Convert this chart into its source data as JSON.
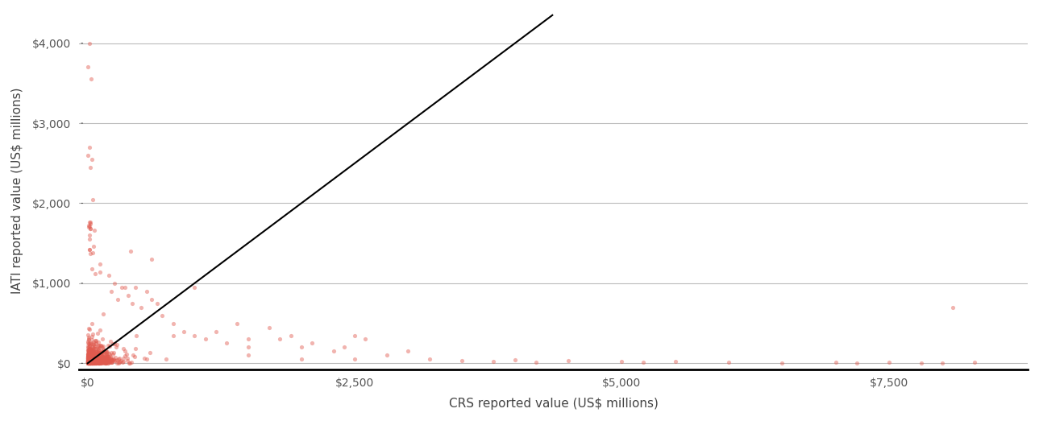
{
  "xlabel": "CRS reported value (US$ millions)",
  "ylabel": "IATI reported value (US$ millions)",
  "xlim": [
    -50,
    8800
  ],
  "ylim": [
    -50,
    4400
  ],
  "xlim_plot": [
    0,
    8800
  ],
  "ylim_plot": [
    0,
    4400
  ],
  "xticks": [
    0,
    2500,
    5000,
    7500
  ],
  "yticks": [
    0,
    1000,
    2000,
    3000,
    4000
  ],
  "dot_color": "#e05a4e",
  "dot_alpha": 0.45,
  "dot_size": 14,
  "line_color": "#000000",
  "line_x": [
    0,
    4350
  ],
  "line_y": [
    0,
    4350
  ],
  "grid_color": "#bbbbbb",
  "background_color": "#ffffff",
  "axis_label_color": "#444444",
  "tick_label_color": "#555555",
  "bottom_spine_color": "#000000",
  "bottom_spine_width": 2.0,
  "xlabel_fontsize": 11,
  "ylabel_fontsize": 11,
  "tick_fontsize": 10
}
